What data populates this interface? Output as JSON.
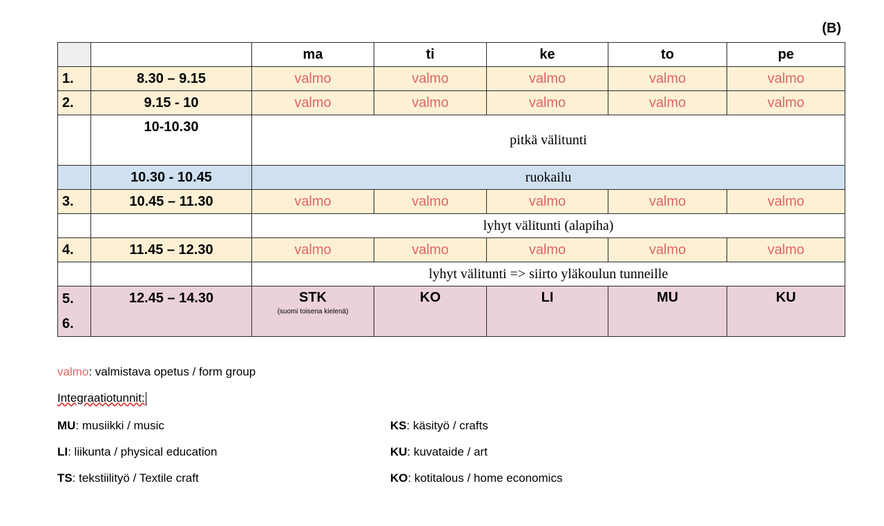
{
  "tag": "(B)",
  "days": [
    "ma",
    "ti",
    "ke",
    "to",
    "pe"
  ],
  "rows": [
    {
      "num": "1.",
      "time": "8.30 – 9.15",
      "cells": [
        "valmo",
        "valmo",
        "valmo",
        "valmo",
        "valmo"
      ]
    },
    {
      "num": "2.",
      "time": "9.15 - 10",
      "cells": [
        "valmo",
        "valmo",
        "valmo",
        "valmo",
        "valmo"
      ]
    },
    {
      "num": "",
      "time": "10-10.30",
      "span": "pitkä välitunti"
    },
    {
      "num": "",
      "time": "10.30 - 10.45",
      "span": "ruokailu"
    },
    {
      "num": "3.",
      "time": "10.45 – 11.30",
      "cells": [
        "valmo",
        "valmo",
        "valmo",
        "valmo",
        "valmo"
      ]
    },
    {
      "num": "",
      "time": "",
      "span": "lyhyt välitunti (alapiha)"
    },
    {
      "num": "4.",
      "time": "11.45 – 12.30",
      "cells": [
        "valmo",
        "valmo",
        "valmo",
        "valmo",
        "valmo"
      ]
    },
    {
      "num": "",
      "time": "",
      "span": "lyhyt välitunti => siirto yläkoulun tunneille"
    },
    {
      "num": "5.",
      "num2": "6.",
      "time": "12.45 – 14.30",
      "subjects": [
        "STK",
        "KO",
        "LI",
        "MU",
        "KU"
      ],
      "stk_note": "(suomi toisena kielenä)"
    }
  ],
  "legend": {
    "valmo_key": "valmo",
    "valmo_desc": ": valmistava opetus / form group",
    "integration_title": "Integraatiotunnit:",
    "left": [
      {
        "key": "MU",
        "desc": ": musiikki / music"
      },
      {
        "key": "LI",
        "desc": ": liikunta / physical education"
      },
      {
        "key": "TS",
        "desc": ": tekstiilityö / Textile craft"
      }
    ],
    "right": [
      {
        "key": "KS",
        "desc": ": käsityö / crafts"
      },
      {
        "key": "KU",
        "desc": ": kuvataide / art"
      },
      {
        "key": "KO",
        "desc": ": kotitalous /  home economics"
      }
    ]
  }
}
